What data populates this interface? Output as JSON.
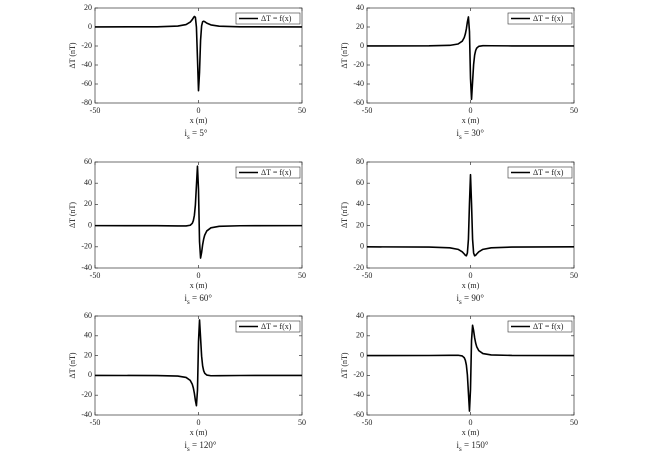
{
  "chart_data": [
    {
      "type": "line",
      "xlabel": "x (m)",
      "ylabel": "ΔT (nT)",
      "caption": [
        "i",
        "s",
        " = 5°"
      ],
      "x": [
        -50,
        -20,
        -10,
        -6,
        -4,
        -3,
        -2.5,
        -2,
        -1.5,
        -1,
        -0.5,
        0,
        0.5,
        1,
        1.5,
        2,
        2.5,
        3,
        4,
        6,
        10,
        20,
        50
      ],
      "series": [
        {
          "name": "ΔT = f(x)",
          "color": "#000000",
          "values": [
            0.04,
            0.24,
            0.97,
            2.56,
            5.16,
            7.83,
            9.58,
            11.12,
            10.25,
            -0.26,
            -33.05,
            -67.04,
            -47.39,
            -14.0,
            1.23,
            5.58,
            6.12,
            5.57,
            4.08,
            2.2,
            0.89,
            0.24,
            0.04
          ]
        }
      ],
      "xlim": [
        -50,
        50
      ],
      "xticks": [
        -50,
        0,
        50
      ],
      "ylim": [
        -80,
        20
      ],
      "yticks": [
        -80,
        -60,
        -40,
        -20,
        0,
        20
      ],
      "legend": "upper right"
    },
    {
      "type": "line",
      "xlabel": "x (m)",
      "ylabel": "ΔT (nT)",
      "caption": [
        "i",
        "s",
        " = 30°"
      ],
      "x": [
        -50,
        -20,
        -10,
        -6,
        -4,
        -3,
        -2.5,
        -2,
        -1.5,
        -1,
        -0.5,
        0,
        0.5,
        1,
        1.5,
        2,
        2.5,
        3,
        4,
        6,
        10,
        20,
        50
      ],
      "series": [
        {
          "name": "ΔT = f(x)",
          "color": "#000000",
          "values": [
            0.02,
            0.15,
            0.67,
            2.08,
            5.03,
            9.0,
            12.6,
            18.01,
            25.36,
            30.59,
            15.24,
            -34.03,
            -56.08,
            -37.83,
            -19.52,
            -9.53,
            -4.62,
            -2.2,
            -0.33,
            0.34,
            0.27,
            0.09,
            0.02
          ]
        }
      ],
      "xlim": [
        -50,
        50
      ],
      "xticks": [
        -50,
        0,
        50
      ],
      "ylim": [
        -60,
        40
      ],
      "yticks": [
        -60,
        -40,
        -20,
        0,
        20,
        40
      ],
      "legend": "upper right"
    },
    {
      "type": "line",
      "xlabel": "x (m)",
      "ylabel": "ΔT (nT)",
      "caption": [
        "i",
        "s",
        " = 60°"
      ],
      "x": [
        -50,
        -20,
        -10,
        -6,
        -4,
        -3,
        -2.5,
        -2,
        -1.5,
        -1,
        -0.5,
        0,
        0.5,
        1,
        1.5,
        2,
        2.5,
        3,
        4,
        6,
        10,
        20,
        50
      ],
      "series": [
        {
          "name": "ΔT = f(x)",
          "color": "#000000",
          "values": [
            -0.02,
            -0.09,
            -0.27,
            -0.34,
            0.33,
            2.2,
            4.62,
            9.53,
            19.52,
            37.83,
            56.08,
            34.03,
            -15.24,
            -30.59,
            -25.36,
            -18.01,
            -12.6,
            -9.0,
            -5.03,
            -2.08,
            -0.67,
            -0.15,
            -0.02
          ]
        }
      ],
      "xlim": [
        -50,
        50
      ],
      "xticks": [
        -50,
        0,
        50
      ],
      "ylim": [
        -40,
        60
      ],
      "yticks": [
        -40,
        -20,
        0,
        20,
        40,
        60
      ],
      "legend": "upper right"
    },
    {
      "type": "line",
      "xlabel": "x (m)",
      "ylabel": "ΔT (nT)",
      "caption": [
        "i",
        "s",
        " = 90°"
      ],
      "x": [
        -50,
        -20,
        -10,
        -6,
        -4,
        -3,
        -2.5,
        -2,
        -1.5,
        -1,
        -0.5,
        0,
        0.5,
        1,
        1.5,
        2,
        2.5,
        3,
        4,
        6,
        10,
        20,
        50
      ],
      "series": [
        {
          "name": "ΔT = f(x)",
          "color": "#000000",
          "values": [
            -0.04,
            -0.24,
            -0.94,
            -2.42,
            -4.69,
            -6.8,
            -7.97,
            -8.48,
            -5.83,
            7.24,
            40.83,
            68.06,
            40.83,
            7.24,
            -5.83,
            -8.48,
            -7.97,
            -6.8,
            -4.69,
            -2.42,
            -0.94,
            -0.24,
            -0.04
          ]
        }
      ],
      "xlim": [
        -50,
        50
      ],
      "xticks": [
        -50,
        0,
        50
      ],
      "ylim": [
        -20,
        80
      ],
      "yticks": [
        -20,
        0,
        20,
        40,
        60,
        80
      ],
      "legend": "upper right"
    },
    {
      "type": "line",
      "xlabel": "x (m)",
      "ylabel": "ΔT (nT)",
      "caption": [
        "i",
        "s",
        " = 120°"
      ],
      "x": [
        -50,
        -20,
        -10,
        -6,
        -4,
        -3,
        -2.5,
        -2,
        -1.5,
        -1,
        -0.5,
        0,
        0.5,
        1,
        1.5,
        2,
        2.5,
        3,
        4,
        6,
        10,
        20,
        50
      ],
      "series": [
        {
          "name": "ΔT = f(x)",
          "color": "#000000",
          "values": [
            -0.02,
            -0.15,
            -0.67,
            -2.08,
            -5.03,
            -9.0,
            -12.6,
            -18.01,
            -25.36,
            -30.59,
            -15.24,
            34.03,
            56.08,
            37.83,
            19.52,
            9.53,
            4.62,
            2.2,
            0.33,
            -0.34,
            -0.27,
            -0.09,
            -0.02
          ]
        }
      ],
      "xlim": [
        -50,
        50
      ],
      "xticks": [
        -50,
        0,
        50
      ],
      "ylim": [
        -40,
        60
      ],
      "yticks": [
        -40,
        -20,
        0,
        20,
        40,
        60
      ],
      "legend": "upper right"
    },
    {
      "type": "line",
      "xlabel": "x (m)",
      "ylabel": "ΔT (nT)",
      "caption": [
        "i",
        "s",
        " = 150°"
      ],
      "x": [
        -50,
        -20,
        -10,
        -6,
        -4,
        -3,
        -2.5,
        -2,
        -1.5,
        -1,
        -0.5,
        0,
        0.5,
        1,
        1.5,
        2,
        2.5,
        3,
        4,
        6,
        10,
        20,
        50
      ],
      "series": [
        {
          "name": "ΔT = f(x)",
          "color": "#000000",
          "values": [
            0.02,
            0.09,
            0.27,
            0.34,
            -0.33,
            -2.2,
            -4.62,
            -9.53,
            -19.52,
            -37.83,
            -56.08,
            -34.03,
            15.24,
            30.59,
            25.36,
            18.01,
            12.6,
            9.0,
            5.03,
            2.08,
            0.67,
            0.15,
            0.02
          ]
        }
      ],
      "xlim": [
        -50,
        50
      ],
      "xticks": [
        -50,
        0,
        50
      ],
      "ylim": [
        -60,
        40
      ],
      "yticks": [
        -60,
        -40,
        -20,
        0,
        20,
        40
      ],
      "legend": "upper right"
    }
  ]
}
